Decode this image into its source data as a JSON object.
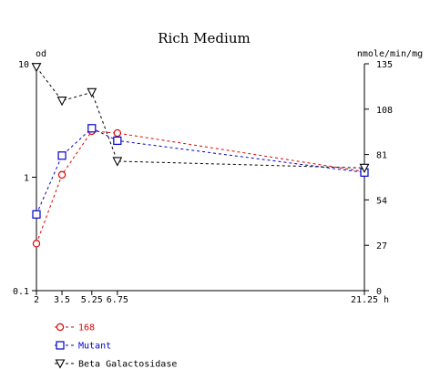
{
  "chart_data": {
    "type": "line",
    "title": "Rich Medium",
    "xlabel": "h",
    "ylabel": "od",
    "y2label": "nmole/min/mg",
    "x_ticks": [
      "2",
      "3.5",
      "5.25",
      "6.75",
      "21.25"
    ],
    "xlim": [
      2,
      21.25
    ],
    "ylim": [
      0.1,
      10
    ],
    "y_scale": "log",
    "y_ticks": [
      "10",
      "1",
      "0.1"
    ],
    "y2lim": [
      0,
      135
    ],
    "y2_ticks": [
      "135",
      "108",
      "81",
      "54",
      "27",
      "0"
    ],
    "grid": false,
    "legend_position": "bottom-left",
    "series": [
      {
        "name": "168",
        "axis": "left",
        "color": "#e00000",
        "marker": "circle",
        "x": [
          2,
          3.5,
          5.25,
          6.75,
          21.25
        ],
        "y": [
          0.26,
          1.05,
          2.55,
          2.45,
          1.12
        ]
      },
      {
        "name": "Mutant",
        "axis": "left",
        "color": "#0000cc",
        "marker": "square",
        "x": [
          2,
          3.5,
          5.25,
          6.75,
          21.25
        ],
        "y": [
          0.47,
          1.55,
          2.7,
          2.1,
          1.1
        ]
      },
      {
        "name": "Beta Galactosidase",
        "axis": "right",
        "color": "#000000",
        "marker": "triangle-down",
        "x": [
          2,
          3.5,
          5.25,
          6.75,
          21.25
        ],
        "y": [
          133,
          113,
          118,
          77,
          73
        ]
      }
    ]
  }
}
